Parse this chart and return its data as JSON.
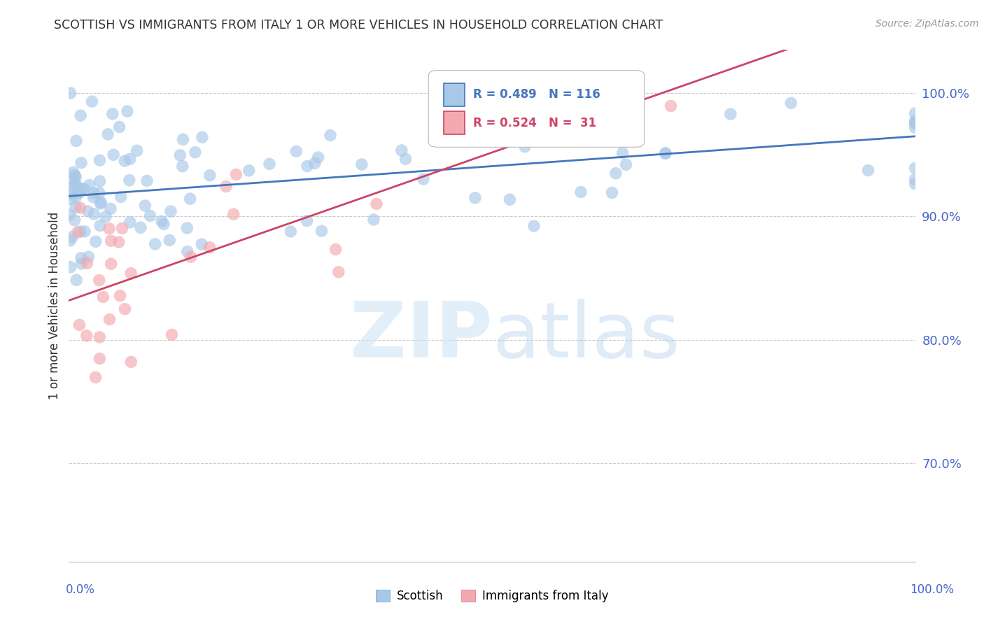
{
  "title": "SCOTTISH VS IMMIGRANTS FROM ITALY 1 OR MORE VEHICLES IN HOUSEHOLD CORRELATION CHART",
  "source": "Source: ZipAtlas.com",
  "ylabel": "1 or more Vehicles in Household",
  "yticks": [
    "70.0%",
    "80.0%",
    "90.0%",
    "100.0%"
  ],
  "ytick_vals": [
    70.0,
    80.0,
    90.0,
    100.0
  ],
  "xlim": [
    0.0,
    100.0
  ],
  "ylim": [
    62.0,
    103.5
  ],
  "scatter_blue_color": "#a8c8e8",
  "scatter_pink_color": "#f4a8b0",
  "trendline_blue_color": "#4477bb",
  "trendline_pink_color": "#cc4466",
  "legend_blue_label": "Scottish",
  "legend_pink_label": "Immigrants from Italy",
  "R_blue": 0.489,
  "N_blue": 116,
  "R_pink": 0.524,
  "N_pink": 31,
  "background_color": "#ffffff",
  "grid_color": "#cccccc",
  "axis_label_color": "#4466cc",
  "title_color": "#333333",
  "source_color": "#999999"
}
